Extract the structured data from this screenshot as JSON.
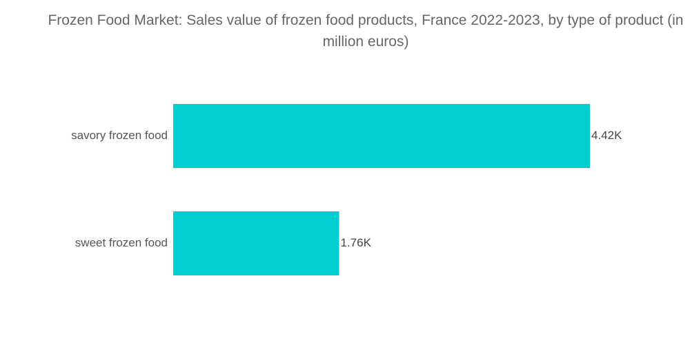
{
  "chart_data": {
    "type": "bar",
    "orientation": "horizontal",
    "title": "Frozen Food Market: Sales value of frozen food products, France 2022-2023, by type of product (in million euros)",
    "categories": [
      "savory frozen food",
      "sweet frozen food"
    ],
    "values": [
      4420,
      1760
    ],
    "value_labels": [
      "4.42K",
      "1.76K"
    ],
    "bar_color": "#00CED1",
    "xlabel": "",
    "ylabel": "",
    "xlim": [
      0,
      4420
    ],
    "grid": false,
    "legend": "none"
  }
}
